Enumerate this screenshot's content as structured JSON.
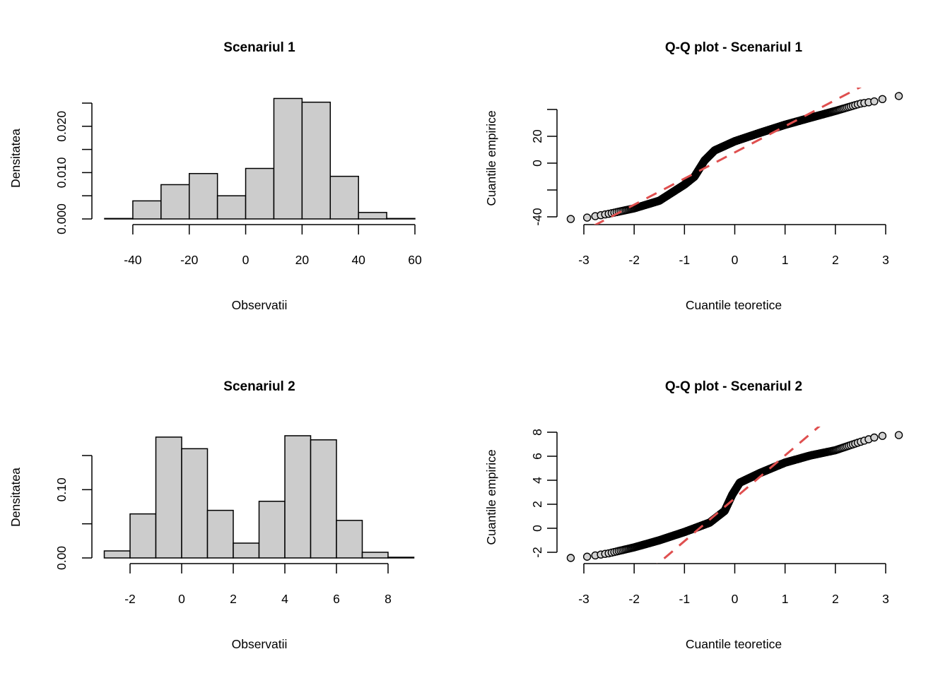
{
  "chart_data": [
    {
      "type": "bar",
      "title": "Scenariul 1",
      "xlabel": "Observatii",
      "ylabel": "Densitatea",
      "bin_edges": [
        -50,
        -40,
        -30,
        -20,
        -10,
        0,
        10,
        20,
        30,
        40,
        50,
        60
      ],
      "values": [
        0.0001,
        0.0039,
        0.0074,
        0.0098,
        0.005,
        0.0109,
        0.026,
        0.0252,
        0.0092,
        0.0014,
        0.0001
      ],
      "xlim": [
        -50,
        60
      ],
      "ylim": [
        0,
        0.025
      ],
      "x_ticks": [
        -40,
        -20,
        0,
        20,
        40,
        60
      ],
      "x_tick_labels": [
        "-40",
        "-20",
        "0",
        "20",
        "40",
        "60"
      ],
      "y_ticks": [
        0,
        0.005,
        0.01,
        0.015,
        0.02,
        0.025
      ],
      "y_tick_labels": [
        "0.000",
        "",
        "0.010",
        "",
        "0.020",
        ""
      ],
      "bar_color": "#cccccc",
      "grid": false
    },
    {
      "type": "scatter",
      "title": "Q-Q plot - Scenariul 1",
      "xlabel": "Cuantile teoretice",
      "ylabel": "Cuantile empirice",
      "points": [
        [
          -3.09,
          -41.6
        ],
        [
          -2.5,
          -37.7
        ],
        [
          -2,
          -33.7
        ],
        [
          -1.5,
          -28
        ],
        [
          -1,
          -16
        ],
        [
          -0.8,
          -10
        ],
        [
          -0.6,
          2
        ],
        [
          -0.4,
          9.5
        ],
        [
          0,
          16.3
        ],
        [
          0.5,
          22.6
        ],
        [
          1,
          28.6
        ],
        [
          1.5,
          33.8
        ],
        [
          2,
          38.9
        ],
        [
          2.5,
          44.4
        ],
        [
          2.85,
          46.5
        ],
        [
          3.09,
          50
        ]
      ],
      "reference_line": {
        "slope": 19.5,
        "intercept": 8,
        "color": "#df4f4f",
        "style": "dashed"
      },
      "xlim": [
        -3,
        3
      ],
      "ylim": [
        -40,
        40
      ],
      "x_ticks": [
        -3,
        -2,
        -1,
        0,
        1,
        2,
        3
      ],
      "x_tick_labels": [
        "-3",
        "-2",
        "-1",
        "0",
        "1",
        "2",
        "3"
      ],
      "y_ticks": [
        -40,
        -20,
        0,
        20,
        40
      ],
      "y_tick_labels": [
        "-40",
        "",
        "0",
        "20",
        ""
      ],
      "point_fill": "#d3d3d3",
      "grid": false
    },
    {
      "type": "bar",
      "title": "Scenariul 2",
      "xlabel": "Observatii",
      "ylabel": "Densitatea",
      "bin_edges": [
        -3,
        -2,
        -1,
        0,
        1,
        2,
        3,
        4,
        5,
        6,
        7,
        8,
        9
      ],
      "values": [
        0.0103,
        0.0645,
        0.177,
        0.16,
        0.0697,
        0.0217,
        0.083,
        0.179,
        0.173,
        0.055,
        0.0083,
        0.001
      ],
      "xlim": [
        -3,
        9
      ],
      "ylim": [
        0,
        0.15
      ],
      "x_ticks": [
        -2,
        0,
        2,
        4,
        6,
        8
      ],
      "x_tick_labels": [
        "-2",
        "0",
        "2",
        "4",
        "6",
        "8"
      ],
      "y_ticks": [
        0,
        0.05,
        0.1,
        0.15
      ],
      "y_tick_labels": [
        "0.00",
        "",
        "0.10",
        ""
      ],
      "bar_color": "#cccccc",
      "grid": false
    },
    {
      "type": "scatter",
      "title": "Q-Q plot - Scenariul 2",
      "xlabel": "Cuantile teoretice",
      "ylabel": "Cuantile empirice",
      "points": [
        [
          -3.09,
          -2.47
        ],
        [
          -2.5,
          -2.08
        ],
        [
          -2,
          -1.59
        ],
        [
          -1.5,
          -1.0
        ],
        [
          -1,
          -0.31
        ],
        [
          -0.5,
          0.47
        ],
        [
          -0.2,
          1.45
        ],
        [
          -0.05,
          2.8
        ],
        [
          0.1,
          3.8
        ],
        [
          0.5,
          4.6
        ],
        [
          1,
          5.47
        ],
        [
          1.5,
          6.06
        ],
        [
          2,
          6.5
        ],
        [
          2.5,
          7.2
        ],
        [
          2.85,
          7.66
        ],
        [
          3.09,
          7.76
        ]
      ],
      "reference_line": {
        "slope": 3.57,
        "intercept": 2.5,
        "color": "#df4f4f",
        "style": "dashed"
      },
      "xlim": [
        -3,
        3
      ],
      "ylim": [
        -2,
        8
      ],
      "x_ticks": [
        -3,
        -2,
        -1,
        0,
        1,
        2,
        3
      ],
      "x_tick_labels": [
        "-3",
        "-2",
        "-1",
        "0",
        "1",
        "2",
        "3"
      ],
      "y_ticks": [
        -2,
        0,
        2,
        4,
        6,
        8
      ],
      "y_tick_labels": [
        "-2",
        "0",
        "2",
        "4",
        "6",
        "8"
      ],
      "point_fill": "#d3d3d3",
      "grid": false
    }
  ]
}
